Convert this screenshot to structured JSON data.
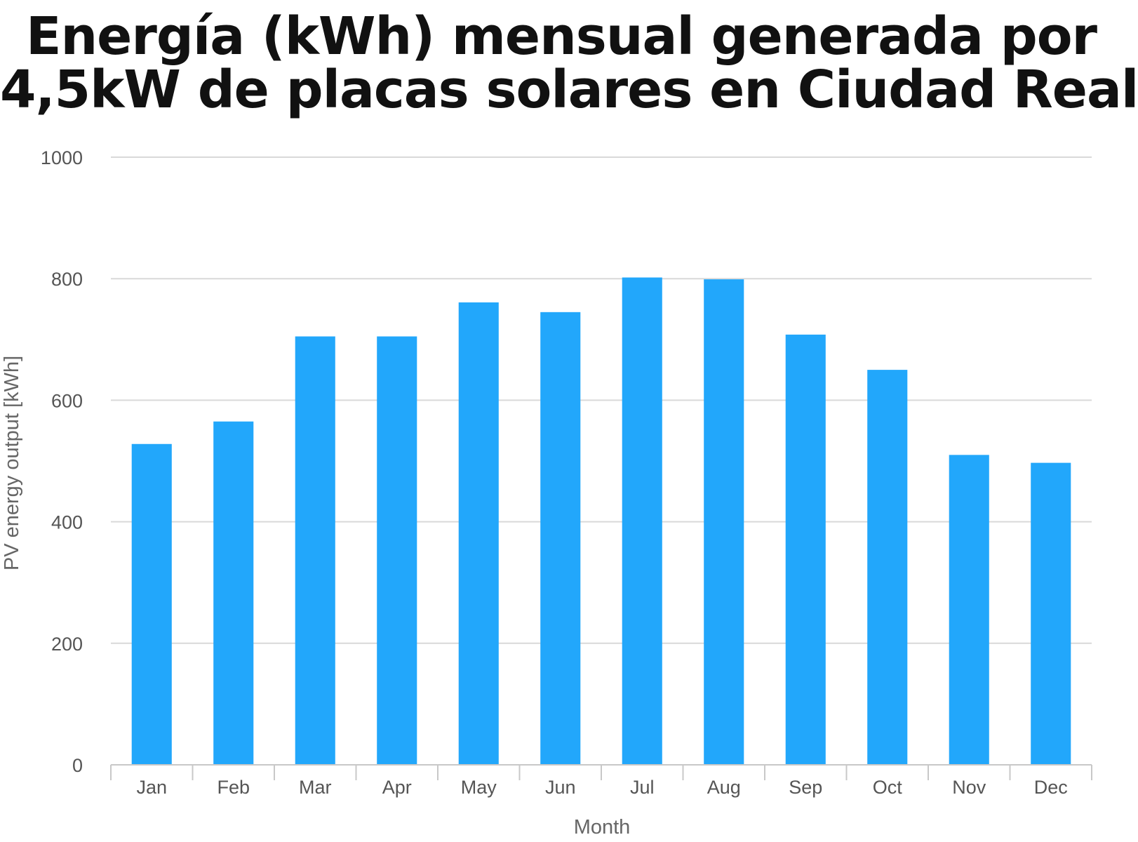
{
  "chart_data": {
    "type": "bar",
    "title_lines": [
      "Energía (kWh) mensual generada por",
      "4,5kW de placas solares en Ciudad Real"
    ],
    "xlabel": "Month",
    "ylabel": "PV energy output [kWh]",
    "categories": [
      "Jan",
      "Feb",
      "Mar",
      "Apr",
      "May",
      "Jun",
      "Jul",
      "Aug",
      "Sep",
      "Oct",
      "Nov",
      "Dec"
    ],
    "values": [
      528,
      565,
      705,
      705,
      761,
      745,
      802,
      799,
      708,
      650,
      510,
      497
    ],
    "ylim": [
      0,
      1000
    ],
    "yticks": [
      0,
      200,
      400,
      600,
      800,
      1000
    ],
    "bar_color": "#22a7fb",
    "grid": true
  }
}
